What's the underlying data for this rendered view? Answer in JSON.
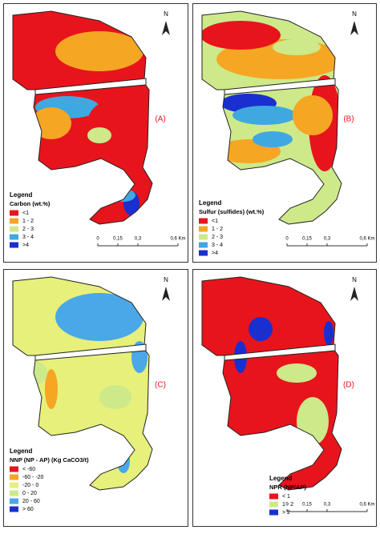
{
  "panels": [
    {
      "label": "(A)",
      "north": "N",
      "legend_heading": "Legend",
      "legend_title": "Carbon (wt.%)",
      "legend_items": [
        {
          "label": "<1",
          "color": "#e8141c"
        },
        {
          "label": "1 - 2",
          "color": "#f5a623"
        },
        {
          "label": "2 - 3",
          "color": "#cde98a"
        },
        {
          "label": "3 - 4",
          "color": "#40a8e0"
        },
        {
          "label": ">4",
          "color": "#1a2fd0"
        }
      ],
      "scale": [
        "0",
        "0,15",
        "0,3",
        "0,6 Km"
      ]
    },
    {
      "label": "(B)",
      "north": "N",
      "legend_heading": "Legend",
      "legend_title": "Sulfur (sulfides) (wt.%)",
      "legend_items": [
        {
          "label": "<1",
          "color": "#e8141c"
        },
        {
          "label": "1 - 2",
          "color": "#f5a623"
        },
        {
          "label": "2 - 3",
          "color": "#cde98a"
        },
        {
          "label": "3 - 4",
          "color": "#40a8e0"
        },
        {
          "label": ">4",
          "color": "#1a2fd0"
        }
      ],
      "scale": [
        "0",
        "0,15",
        "0,3",
        "0,6 Km"
      ]
    },
    {
      "label": "(C)",
      "north": "N",
      "legend_heading": "Legend",
      "legend_title": "NNP (NP - AP) (Kg CaCO3/t)",
      "legend_items": [
        {
          "label": "< -60",
          "color": "#e8141c"
        },
        {
          "label": "-60 - -20",
          "color": "#f5a623"
        },
        {
          "label": "-20 - 0",
          "color": "#e6f07a"
        },
        {
          "label": "0 - 20",
          "color": "#cde98a"
        },
        {
          "label": "20 - 60",
          "color": "#4aa8e8"
        },
        {
          "label": "> 60",
          "color": "#1a2fd0"
        }
      ],
      "scale": []
    },
    {
      "label": "(D)",
      "north": "N",
      "legend_heading": "Legend",
      "legend_title": "NPR (NP/AP)",
      "legend_items": [
        {
          "label": "< 1",
          "color": "#e8141c"
        },
        {
          "label": "1 - 2",
          "color": "#cde98a"
        },
        {
          "label": "> 2",
          "color": "#1a2fd0"
        }
      ],
      "scale": [
        "0",
        "0,15",
        "0,3",
        "0,6 Km"
      ]
    }
  ]
}
